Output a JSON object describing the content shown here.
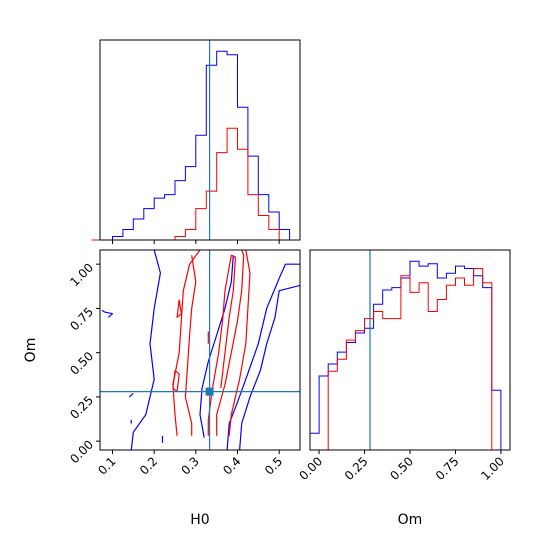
{
  "chart_data": [
    {
      "type": "histogram",
      "panel": "H0 marginal",
      "xlim": [
        0.07,
        0.55
      ],
      "truth": 0.333,
      "show_y_ticks": false,
      "series": [
        {
          "color": "#0000ff",
          "edges": [
            0.05,
            0.1,
            0.125,
            0.15,
            0.175,
            0.2,
            0.225,
            0.25,
            0.275,
            0.3,
            0.325,
            0.35,
            0.375,
            0.4,
            0.425,
            0.45,
            0.475,
            0.5,
            0.525,
            0.55
          ],
          "counts": [
            0,
            1,
            3,
            6,
            9,
            12,
            13,
            17,
            21,
            30,
            50,
            54,
            53,
            38,
            24,
            13,
            8,
            3,
            0
          ]
        },
        {
          "color": "#ff0000",
          "edges": [
            0.05,
            0.1,
            0.125,
            0.15,
            0.175,
            0.2,
            0.225,
            0.25,
            0.275,
            0.3,
            0.325,
            0.35,
            0.375,
            0.4,
            0.425,
            0.45,
            0.475,
            0.5,
            0.525,
            0.55
          ],
          "counts": [
            0,
            0,
            0,
            0,
            0,
            0,
            0,
            1,
            3,
            9,
            14,
            25,
            32,
            26,
            13,
            7,
            3,
            0,
            0
          ]
        }
      ]
    },
    {
      "type": "contour",
      "panel": "H0 vs Om",
      "xlabel": "H0",
      "ylabel": "Om",
      "xlim": [
        0.07,
        0.55
      ],
      "ylim": [
        -0.05,
        1.08
      ],
      "xticks": [
        "0.1",
        "0.2",
        "0.3",
        "0.4",
        "0.5"
      ],
      "xtick_values": [
        0.1,
        0.2,
        0.3,
        0.4,
        0.5
      ],
      "yticks": [
        "0.00",
        "0.25",
        "0.50",
        "0.75",
        "1.00"
      ],
      "ytick_values": [
        0,
        0.25,
        0.5,
        0.75,
        1.0
      ],
      "truth": {
        "x": 0.333,
        "y": 0.28
      },
      "truth_color": "#1f77b4",
      "series": [
        {
          "color": "#0000ff",
          "contours": [
            [
              [
                0.145,
                -0.05
              ],
              [
                0.15,
                0.05
              ],
              [
                0.18,
                0.15
              ],
              [
                0.2,
                0.35
              ],
              [
                0.19,
                0.55
              ],
              [
                0.2,
                0.75
              ],
              [
                0.215,
                0.95
              ],
              [
                0.2,
                1.08
              ]
            ],
            [
              [
                0.375,
                -0.05
              ],
              [
                0.38,
                0.1
              ],
              [
                0.4,
                0.22
              ],
              [
                0.42,
                0.35
              ],
              [
                0.45,
                0.55
              ],
              [
                0.47,
                0.75
              ],
              [
                0.5,
                0.92
              ],
              [
                0.515,
                1.0
              ],
              [
                0.55,
                1.0
              ]
            ],
            [
              [
                0.55,
                0.88
              ],
              [
                0.5,
                0.85
              ],
              [
                0.49,
                0.7
              ],
              [
                0.47,
                0.55
              ],
              [
                0.455,
                0.4
              ],
              [
                0.43,
                0.25
              ],
              [
                0.41,
                0.1
              ],
              [
                0.405,
                -0.05
              ]
            ],
            [
              [
                0.32,
                0.02
              ],
              [
                0.31,
                0.15
              ],
              [
                0.315,
                0.3
              ],
              [
                0.33,
                0.45
              ],
              [
                0.35,
                0.6
              ],
              [
                0.37,
                0.75
              ],
              [
                0.385,
                0.9
              ],
              [
                0.39,
                1.05
              ]
            ],
            [
              [
                0.22,
                -0.01
              ],
              [
                0.22,
                0.03
              ]
            ],
            [
              [
                0.145,
                0.12
              ],
              [
                0.145,
                0.1
              ]
            ],
            [
              [
                0.09,
                0.7
              ],
              [
                0.1,
                0.72
              ],
              [
                0.08,
                0.73
              ],
              [
                0.075,
                0.74
              ]
            ],
            [
              [
                0.14,
                0.25
              ],
              [
                0.15,
                0.27
              ]
            ]
          ]
        },
        {
          "color": "#ff0000",
          "contours": [
            [
              [
                0.255,
                0.03
              ],
              [
                0.25,
                0.15
              ],
              [
                0.245,
                0.32
              ],
              [
                0.26,
                0.5
              ],
              [
                0.265,
                0.68
              ],
              [
                0.27,
                0.85
              ],
              [
                0.285,
                1.0
              ],
              [
                0.31,
                1.08
              ]
            ],
            [
              [
                0.29,
                0.03
              ],
              [
                0.29,
                0.1
              ],
              [
                0.275,
                0.25
              ],
              [
                0.28,
                0.42
              ],
              [
                0.285,
                0.6
              ],
              [
                0.29,
                0.75
              ],
              [
                0.3,
                0.9
              ],
              [
                0.29,
                1.05
              ]
            ],
            [
              [
                0.33,
                0.03
              ],
              [
                0.33,
                0.12
              ],
              [
                0.34,
                0.3
              ],
              [
                0.355,
                0.5
              ],
              [
                0.365,
                0.7
              ],
              [
                0.37,
                0.85
              ],
              [
                0.385,
                1.05
              ],
              [
                0.395,
                1.04
              ],
              [
                0.39,
                0.85
              ],
              [
                0.38,
                0.7
              ],
              [
                0.37,
                0.5
              ],
              [
                0.36,
                0.3
              ]
            ],
            [
              [
                0.35,
                0.03
              ],
              [
                0.35,
                0.15
              ],
              [
                0.37,
                0.32
              ],
              [
                0.385,
                0.5
              ],
              [
                0.4,
                0.68
              ],
              [
                0.41,
                0.85
              ],
              [
                0.415,
                1.05
              ],
              [
                0.41,
                1.08
              ]
            ],
            [
              [
                0.38,
                0.03
              ],
              [
                0.385,
                0.15
              ],
              [
                0.405,
                0.35
              ],
              [
                0.42,
                0.55
              ],
              [
                0.425,
                0.75
              ],
              [
                0.43,
                0.95
              ],
              [
                0.42,
                1.08
              ]
            ],
            [
              [
                0.33,
                0.62
              ],
              [
                0.33,
                0.55
              ]
            ],
            [
              [
                0.25,
                0.4
              ],
              [
                0.245,
                0.3
              ],
              [
                0.255,
                0.28
              ],
              [
                0.26,
                0.38
              ],
              [
                0.25,
                0.4
              ]
            ],
            [
              [
                0.26,
                0.8
              ],
              [
                0.255,
                0.7
              ],
              [
                0.265,
                0.72
              ],
              [
                0.26,
                0.8
              ]
            ]
          ]
        }
      ]
    },
    {
      "type": "histogram",
      "panel": "Om marginal",
      "xlabel": "Om",
      "xlim": [
        -0.05,
        1.05
      ],
      "xticks": [
        "0.00",
        "0.25",
        "0.50",
        "0.75",
        "1.00"
      ],
      "xtick_values": [
        0,
        0.25,
        0.5,
        0.75,
        1.0
      ],
      "truth": 0.28,
      "show_y_ticks": false,
      "series": [
        {
          "color": "#0000ff",
          "edges": [
            -0.05,
            0.0,
            0.05,
            0.1,
            0.15,
            0.2,
            0.25,
            0.3,
            0.35,
            0.4,
            0.45,
            0.5,
            0.55,
            0.6,
            0.65,
            0.7,
            0.75,
            0.8,
            0.85,
            0.9,
            0.95,
            1.0,
            1.05
          ],
          "counts": [
            7,
            31,
            36,
            41,
            45,
            49,
            51,
            61,
            67,
            68,
            72,
            79,
            77,
            78,
            72,
            74,
            77,
            76,
            73,
            68,
            25,
            0
          ]
        },
        {
          "color": "#ff0000",
          "edges": [
            -0.05,
            0.0,
            0.05,
            0.1,
            0.15,
            0.2,
            0.25,
            0.3,
            0.35,
            0.4,
            0.45,
            0.5,
            0.55,
            0.6,
            0.65,
            0.7,
            0.75,
            0.8,
            0.85,
            0.9,
            0.95,
            1.0,
            1.05
          ],
          "counts": [
            0,
            0,
            33,
            38,
            46,
            50,
            55,
            58,
            55,
            55,
            73,
            66,
            70,
            58,
            63,
            69,
            72,
            69,
            76,
            70,
            0,
            0
          ]
        }
      ]
    }
  ]
}
